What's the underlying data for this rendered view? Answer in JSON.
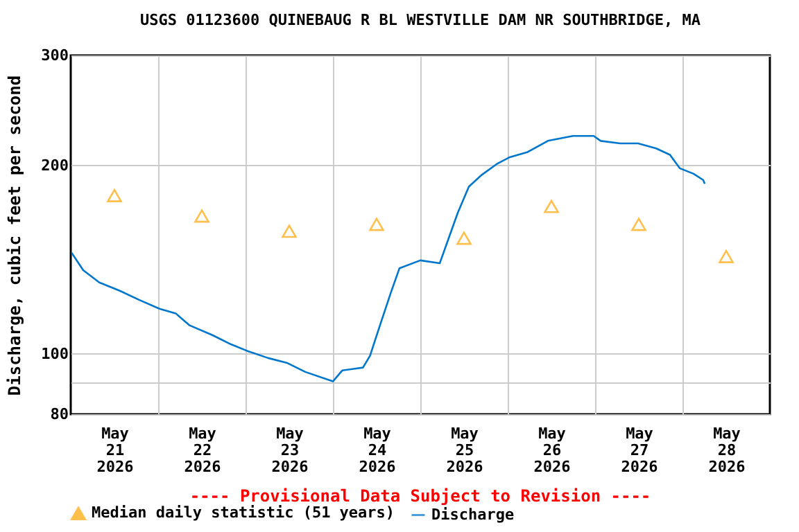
{
  "chart_data": {
    "type": "line",
    "title": "USGS 01123600 QUINEBAUG R BL WESTVILLE DAM NR SOUTHBRIDGE, MA",
    "ylabel": "Discharge, cubic feet per second",
    "annotations": [
      "---- Provisional Data Subject to Revision ----"
    ],
    "log": "y",
    "grid": true,
    "legend": "bottom",
    "xlim": [
      "2026-05-21T00:00",
      "2026-05-29T00:00"
    ],
    "xticks": [
      {
        "value": "2026-05-21T12:00",
        "label": "May\n21\n2026"
      },
      {
        "value": "2026-05-22T12:00",
        "label": "May\n22\n2026"
      },
      {
        "value": "2026-05-23T12:00",
        "label": "May\n23\n2026"
      },
      {
        "value": "2026-05-24T12:00",
        "label": "May\n24\n2026"
      },
      {
        "value": "2026-05-25T12:00",
        "label": "May\n25\n2026"
      },
      {
        "value": "2026-05-26T12:00",
        "label": "May\n26\n2026"
      },
      {
        "value": "2026-05-27T12:00",
        "label": "May\n27\n2026"
      },
      {
        "value": "2026-05-28T12:00",
        "label": "May\n28\n2026"
      },
      {
        "value": "2026-05-22T00:00",
        "label": null
      },
      {
        "value": "2026-05-23T00:00",
        "label": null
      },
      {
        "value": "2026-05-24T00:00",
        "label": null
      },
      {
        "value": "2026-05-25T00:00",
        "label": null
      },
      {
        "value": "2026-05-26T00:00",
        "label": null
      },
      {
        "value": "2026-05-27T00:00",
        "label": null
      },
      {
        "value": "2026-05-28T00:00",
        "label": null
      }
    ],
    "ylim": [
      80,
      300
    ],
    "yticks": [
      80,
      {
        "value": 90,
        "label": null
      },
      100,
      200,
      300
    ],
    "series": [
      {
        "name": "Median daily statistic (51 years)",
        "type": "scatter",
        "marker": "triangle",
        "color": "#ffa500",
        "x": [
          "2026-05-21T12:00",
          "2026-05-22T12:00",
          "2026-05-23T12:00",
          "2026-05-24T12:00",
          "2026-05-25T12:00",
          "2026-05-26T12:00",
          "2026-05-27T12:00",
          "2026-05-28T12:00"
        ],
        "values": [
          179,
          166,
          157,
          161,
          153,
          172,
          161,
          143
        ]
      },
      {
        "name": "Discharge",
        "type": "line",
        "color": "#0077cc",
        "x": [
          "2026-05-21T00:15",
          "2026-05-21T03:25",
          "2026-05-21T07:50",
          "2026-05-21T13:35",
          "2026-05-21T18:40",
          "2026-05-22T00:23",
          "2026-05-22T04:50",
          "2026-05-22T08:38",
          "2026-05-22T15:00",
          "2026-05-22T20:00",
          "2026-05-23T00:30",
          "2026-05-23T06:13",
          "2026-05-23T11:18",
          "2026-05-23T16:24",
          "2026-05-24T00:00",
          "2026-05-24T02:33",
          "2026-05-24T08:15",
          "2026-05-24T10:11",
          "2026-05-24T12:42",
          "2026-05-24T15:52",
          "2026-05-24T18:17",
          "2026-05-25T00:00",
          "2026-05-25T05:20",
          "2026-05-25T07:37",
          "2026-05-25T10:17",
          "2026-05-25T13:20",
          "2026-05-25T16:46",
          "2026-05-25T20:57",
          "2026-05-26T00:23",
          "2026-05-26T05:20",
          "2026-05-26T11:02",
          "2026-05-26T17:54",
          "2026-05-26T23:37",
          "2026-05-27T01:31",
          "2026-05-27T06:51",
          "2026-05-27T11:49",
          "2026-05-27T16:46",
          "2026-05-27T20:34",
          "2026-05-27T23:14",
          "2026-05-28T03:03",
          "2026-05-28T05:43",
          "2026-05-28T06:06"
        ],
        "values": [
          145,
          136,
          130,
          126,
          122,
          118,
          116,
          111,
          107,
          103.5,
          101,
          98.4,
          96.7,
          93.5,
          90.3,
          94,
          95,
          99.2,
          110,
          125,
          137,
          141,
          139.5,
          152,
          168,
          185,
          193,
          201,
          206,
          210,
          219,
          223,
          223,
          219,
          217,
          217,
          213,
          208,
          198,
          194,
          189.5,
          187
        ]
      }
    ]
  }
}
